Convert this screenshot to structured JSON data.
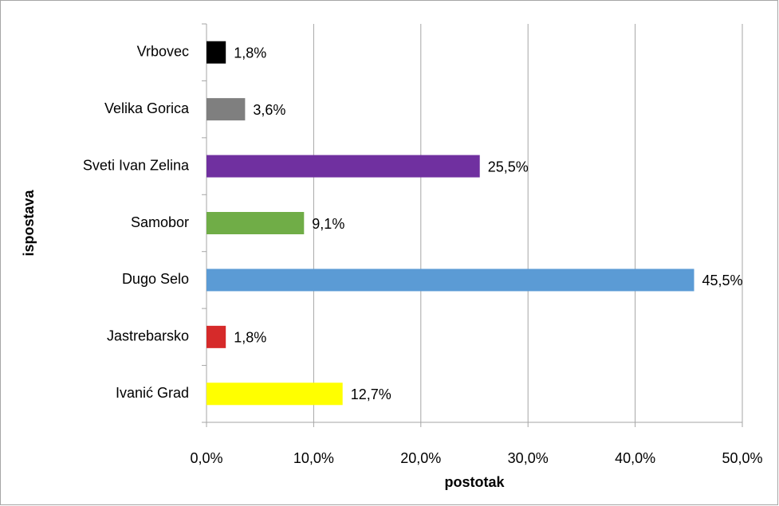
{
  "chart_data": {
    "type": "bar",
    "orientation": "horizontal",
    "x_label": "postotak",
    "y_label": "ispostava",
    "categories": [
      "Vrbovec",
      "Velika Gorica",
      "Sveti Ivan Zelina",
      "Samobor",
      "Dugo Selo",
      "Jastrebarsko",
      "Ivanić Grad"
    ],
    "values": [
      1.8,
      3.6,
      25.5,
      9.1,
      45.5,
      1.8,
      12.7
    ],
    "value_labels": [
      "1,8%",
      "3,6%",
      "25,5%",
      "9,1%",
      "45,5%",
      "1,8%",
      "12,7%"
    ],
    "colors": [
      "#000000",
      "#7f7f7f",
      "#7030a0",
      "#70ad47",
      "#5b9bd5",
      "#d62a2a",
      "#ffff00"
    ],
    "xlim": [
      0,
      50
    ],
    "xticks": [
      {
        "value": 0,
        "label": "0,0%"
      },
      {
        "value": 10,
        "label": "10,0%"
      },
      {
        "value": 20,
        "label": "20,0%"
      },
      {
        "value": 30,
        "label": "30,0%"
      },
      {
        "value": 40,
        "label": "40,0%"
      },
      {
        "value": 50,
        "label": "50,0%"
      }
    ],
    "grid": true
  }
}
